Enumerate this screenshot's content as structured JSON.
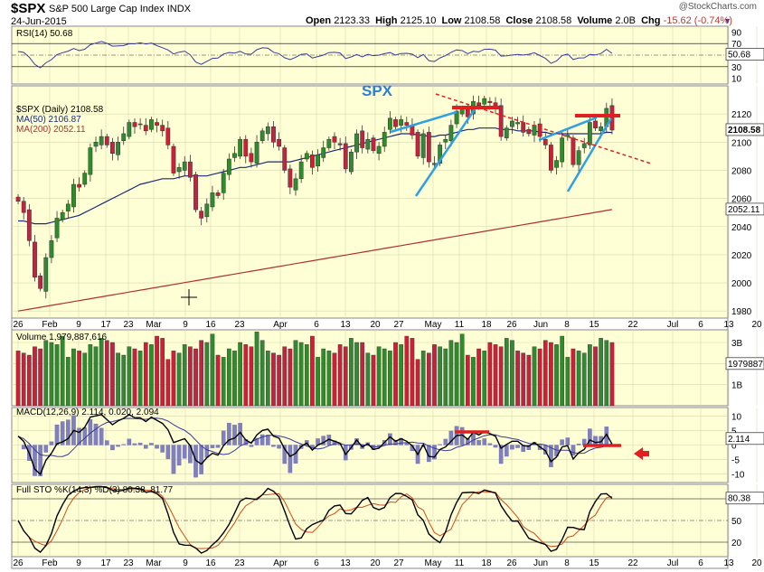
{
  "header": {
    "symbol": "$SPX",
    "name": "S&P 500 Large Cap Index",
    "exchange": "INDX",
    "date": "24-Jun-2015",
    "brand": "@StockCharts.com",
    "open_label": "Open",
    "open": "2123.33",
    "high_label": "High",
    "high": "2125.10",
    "low_label": "Low",
    "low": "2108.58",
    "close_label": "Close",
    "close": "2108.58",
    "volume_label": "Volume",
    "volume": "2.0B",
    "chg_label": "Chg",
    "chg": "-15.62 (-0.74%)",
    "menu_icon": "triangle-down-icon"
  },
  "colors": {
    "panel_bg": "#ffffd6",
    "up": "#2e8b2e",
    "down": "#cc1f3a",
    "ma50": "#1a2a7a",
    "ma200": "#b03030",
    "trend_blue": "#2ea0e6",
    "trend_red": "#e02020",
    "title_blue": "#2a7fd4"
  },
  "chart_data": [
    {
      "type": "line",
      "panel": "rsi",
      "label": "RSI(14) 50.68",
      "value_badge": "50.68",
      "y_ticks": [
        "90",
        "70",
        "30",
        "10"
      ],
      "levels": [
        70,
        30
      ]
    },
    {
      "type": "candlestick",
      "panel": "price",
      "title": "SPX",
      "legend": [
        "$SPX (Daily) 2108.58",
        "MA(50) 2106.87",
        "MA(200) 2052.11"
      ],
      "ylim": [
        1975,
        2140
      ],
      "y_ticks": [
        "2120",
        "2100",
        "2080",
        "2060",
        "2040",
        "2020",
        "2000",
        "1980"
      ],
      "last_close_badge": "2108.58",
      "ma200_badge": "2052.11",
      "x_ticks": [
        "26",
        "Feb",
        "9",
        "17",
        "23",
        "Mar",
        "9",
        "16",
        "23",
        "Apr",
        "6",
        "13",
        "20",
        "27",
        "May",
        "11",
        "18",
        "26",
        "Jun",
        "8",
        "15",
        "22",
        "Jul",
        "6",
        "13",
        "20"
      ],
      "closes": [
        2058,
        2050,
        2030,
        2004,
        1996,
        2018,
        2030,
        2046,
        2050,
        2056,
        2070,
        2068,
        2078,
        2096,
        2100,
        2104,
        2098,
        2092,
        2100,
        2106,
        2114,
        2111,
        2113,
        2108,
        2116,
        2112,
        2108,
        2098,
        2078,
        2082,
        2086,
        2075,
        2052,
        2046,
        2056,
        2064,
        2062,
        2078,
        2088,
        2092,
        2102,
        2090,
        2086,
        2100,
        2108,
        2111,
        2100,
        2097,
        2080,
        2068,
        2074,
        2086,
        2092,
        2082,
        2091,
        2096,
        2102,
        2100,
        2098,
        2081,
        2093,
        2106,
        2096,
        2102,
        2094,
        2097,
        2107,
        2117,
        2111,
        2116,
        2112,
        2105,
        2090,
        2106,
        2086,
        2085,
        2098,
        2102,
        2112,
        2122,
        2124,
        2118,
        2129,
        2126,
        2131,
        2128,
        2124,
        2104,
        2110,
        2115,
        2114,
        2107,
        2106,
        2112,
        2104,
        2098,
        2080,
        2087,
        2103,
        2105,
        2084,
        2094,
        2099,
        2114,
        2110,
        2111,
        2124,
        2108.58
      ],
      "ma50": [
        2044,
        2044,
        2043,
        2042,
        2042,
        2042,
        2043,
        2044,
        2045,
        2046,
        2047,
        2048,
        2050,
        2052,
        2054,
        2056,
        2058,
        2060,
        2062,
        2064,
        2066,
        2068,
        2070,
        2071,
        2072,
        2073,
        2074,
        2074,
        2074,
        2075,
        2076,
        2076,
        2076,
        2076,
        2076,
        2077,
        2078,
        2079,
        2080,
        2081,
        2082,
        2082,
        2083,
        2084,
        2085,
        2086,
        2086,
        2086,
        2086,
        2086,
        2087,
        2088,
        2089,
        2090,
        2091,
        2092,
        2093,
        2094,
        2095,
        2096,
        2097,
        2098,
        2099,
        2100,
        2101,
        2102,
        2103,
        2104,
        2105,
        2106,
        2106,
        2106,
        2105,
        2105,
        2104,
        2104,
        2105,
        2105,
        2106,
        2107,
        2108,
        2109,
        2109,
        2110,
        2110,
        2110,
        2110,
        2109,
        2109,
        2109,
        2108,
        2108,
        2108,
        2108,
        2107,
        2107,
        2106,
        2106,
        2106,
        2106,
        2106,
        2106,
        2106,
        2106,
        2106,
        2106,
        2107,
        2106.87
      ],
      "ma200_start": 1980,
      "ma200_end": 2052.11,
      "annotations": [
        {
          "kind": "up-trendline",
          "color": "blue"
        },
        {
          "kind": "down-trendline",
          "color": "red-dashed"
        },
        {
          "kind": "top-marker",
          "color": "red"
        }
      ]
    },
    {
      "type": "bar",
      "panel": "volume",
      "label": "Volume 1,979,887,616",
      "value_badge": "1979887",
      "y_ticks": [
        "3B",
        "2B",
        "1B"
      ]
    },
    {
      "type": "line",
      "panel": "macd",
      "label": "MACD(12,26,9) 2.114, 0.020, 2.094",
      "value_badge": "2.114",
      "y_ticks": [
        "10",
        "5",
        "0",
        "-5",
        "-10"
      ]
    },
    {
      "type": "line",
      "panel": "stochastics",
      "label": "Full STO %K(14,3) %D(3) 80.38, 81.77",
      "value_badge": "80.38",
      "y_ticks": [
        "50",
        "20"
      ],
      "levels": [
        80,
        20
      ]
    }
  ]
}
